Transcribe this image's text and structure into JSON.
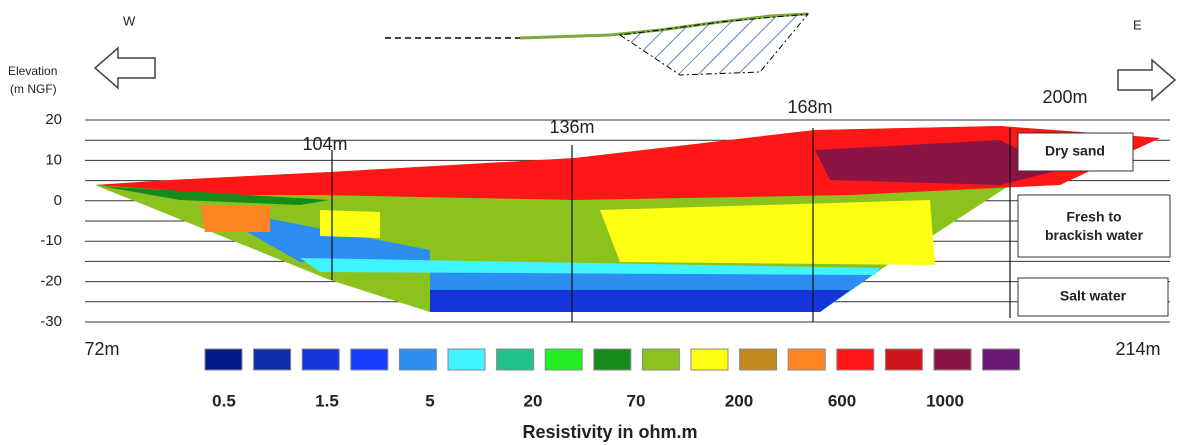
{
  "header": {
    "west": "W",
    "east": "E",
    "elevation_label": "Elevation",
    "elevation_unit": "(m NGF)"
  },
  "axis": {
    "ticks": [
      "20",
      "10",
      "0",
      "-10",
      "-20",
      "-30"
    ]
  },
  "distances": {
    "start": "72m",
    "end": "214m",
    "marks": [
      "104m",
      "136m",
      "168m",
      "200m"
    ]
  },
  "layers": [
    "Dry sand",
    "Fresh to brackish water",
    "Salt water"
  ],
  "legend": {
    "title": "Resistivity in ohm.m",
    "colors": [
      "#001c8a",
      "#0a2fa8",
      "#1435d8",
      "#1a3cff",
      "#2c8ef0",
      "#3ff4ff",
      "#20c08a",
      "#22ee22",
      "#178a1c",
      "#8cc21e",
      "#ffff14",
      "#c08a20",
      "#ff8424",
      "#ff1616",
      "#d0161c",
      "#8c1444",
      "#6a1a74"
    ],
    "labels": [
      "0.5",
      "1.5",
      "5",
      "20",
      "70",
      "200",
      "600",
      "1000"
    ]
  }
}
